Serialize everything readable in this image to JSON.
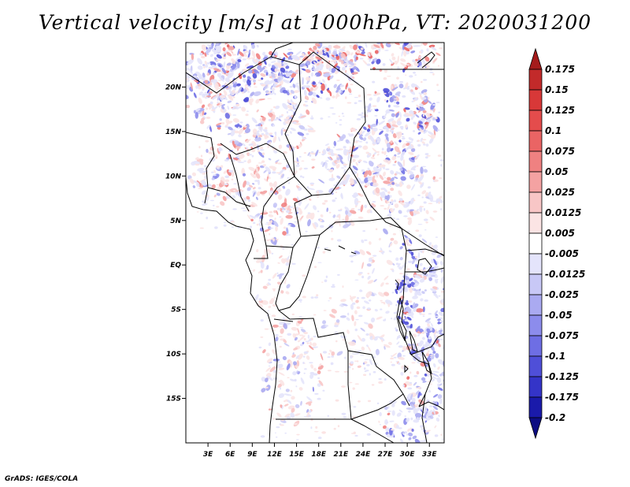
{
  "chart_data": {
    "type": "heatmap",
    "title": "Vertical velocity [m/s] at 1000hPa, VT: 2020031200",
    "xlabel": "",
    "ylabel": "",
    "x_ticks": [
      "3E",
      "6E",
      "9E",
      "12E",
      "15E",
      "18E",
      "21E",
      "24E",
      "27E",
      "30E",
      "33E"
    ],
    "y_ticks": [
      "20N",
      "15N",
      "10N",
      "5N",
      "EQ",
      "5S",
      "10S",
      "15S"
    ],
    "x_tick_values": [
      3,
      6,
      9,
      12,
      15,
      18,
      21,
      24,
      27,
      30,
      33
    ],
    "y_tick_values": [
      20,
      15,
      10,
      5,
      0,
      -5,
      -10,
      -15
    ],
    "xlim": [
      0,
      35
    ],
    "ylim": [
      -20,
      25
    ],
    "colorbar": {
      "levels": [
        "0.175",
        "0.15",
        "0.125",
        "0.1",
        "0.075",
        "0.05",
        "0.025",
        "0.0125",
        "0.005",
        "-0.005",
        "-0.0125",
        "-0.025",
        "-0.05",
        "-0.075",
        "-0.1",
        "-0.125",
        "-0.175",
        "-0.2"
      ],
      "colors": [
        "#a51b1b",
        "#c22a2a",
        "#d83838",
        "#e44c4c",
        "#ea6464",
        "#ef8181",
        "#f4a2a2",
        "#f8c6c6",
        "#fbe4e4",
        "#ffffff",
        "#e4e4fb",
        "#c8c8f6",
        "#aaaaf1",
        "#8c8cec",
        "#6e6ee4",
        "#4f4fd8",
        "#3434c8",
        "#1a1aaa",
        "#0d0d82"
      ]
    }
  },
  "footer": "GrADS: IGES/COLA"
}
